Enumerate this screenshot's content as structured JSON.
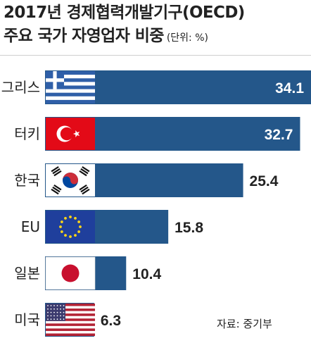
{
  "title": {
    "line1": "2017년 경제협력개발기구(OECD)",
    "line2": "주요 국가 자영업자 비중",
    "unit": "(단위: %)"
  },
  "source": "자료: 중기부",
  "colors": {
    "bar": "#24578a",
    "bar_text_inside": "#ffffff",
    "label": "#222222"
  },
  "chart_data": {
    "type": "bar",
    "orientation": "horizontal",
    "categories": [
      "그리스",
      "터키",
      "한국",
      "EU",
      "일본",
      "미국"
    ],
    "values": [
      34.1,
      32.7,
      25.4,
      15.8,
      10.4,
      6.3
    ],
    "flags": [
      "greece-flag",
      "turkey-flag",
      "korea-flag",
      "eu-flag",
      "japan-flag",
      "usa-flag"
    ],
    "title": "2017년 경제협력개발기구(OECD) 주요 국가 자영업자 비중",
    "unit": "%",
    "xlim": [
      0,
      34.1
    ]
  }
}
